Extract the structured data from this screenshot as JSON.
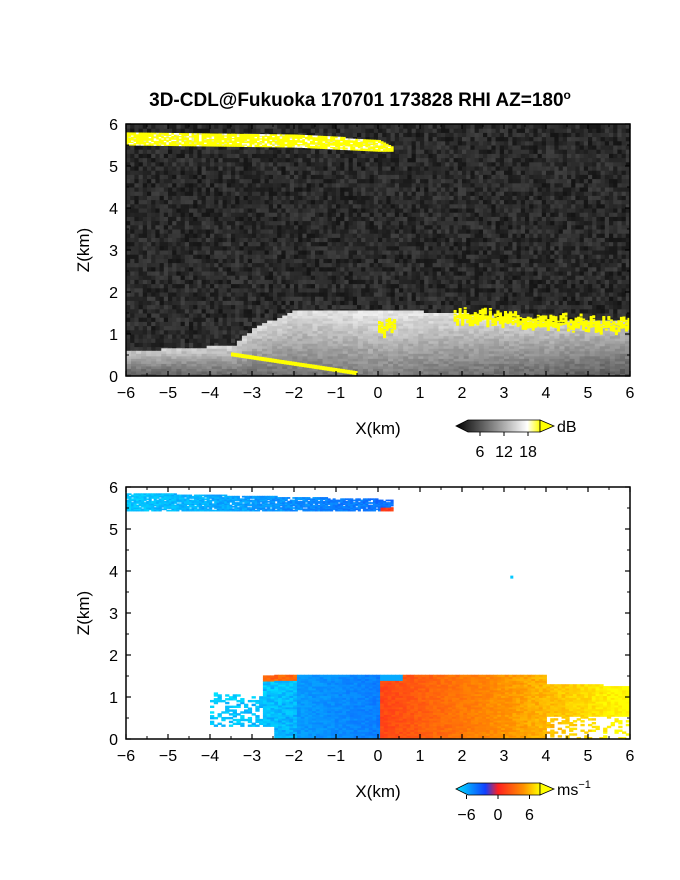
{
  "title": "3D-CDL@Fukuoka 170701 173828 RHI AZ=180",
  "title_superscript": "o",
  "chart_data": [
    {
      "type": "heatmap",
      "quantity": "backscatter intensity",
      "xlabel": "X(km)",
      "ylabel": "Z(km)",
      "xlim": [
        -6,
        6
      ],
      "ylim": [
        0,
        6
      ],
      "xticks": [
        "-6",
        "-5",
        "-4",
        "-3",
        "-2",
        "-1",
        "0",
        "1",
        "2",
        "3",
        "4",
        "5",
        "6"
      ],
      "yticks": [
        "0",
        "1",
        "2",
        "3",
        "4",
        "5",
        "6"
      ],
      "colorbar": {
        "unit": "dB",
        "ticks": [
          "6",
          "12",
          "18"
        ],
        "range": [
          0,
          21
        ],
        "colors": [
          "#000000",
          "#ffffff",
          "#ffff00"
        ]
      },
      "background_color": "#2a2a2a",
      "features": [
        {
          "name": "upper layer",
          "z_top": [
            [
              -6,
              5.8
            ],
            [
              -2,
              5.75
            ],
            [
              0,
              5.6
            ],
            [
              0.3,
              5.45
            ]
          ],
          "z_bottom": [
            [
              -6,
              5.5
            ],
            [
              -2,
              5.45
            ],
            [
              0,
              5.35
            ],
            [
              0.3,
              5.35
            ]
          ],
          "color": "#ffff00"
        },
        {
          "name": "boundary layer echo",
          "z_top": [
            [
              -6,
              0.55
            ],
            [
              -3.5,
              0.7
            ],
            [
              -3,
              1.1
            ],
            [
              -2,
              1.55
            ],
            [
              0,
              1.55
            ],
            [
              2,
              1.45
            ],
            [
              4,
              1.25
            ],
            [
              6,
              1.3
            ]
          ],
          "z_bottom": [
            [
              -6,
              0
            ],
            [
              6,
              0
            ]
          ],
          "color": "#c8c8c8"
        },
        {
          "name": "boundary layer top",
          "x": [
            [
              0,
              0.4
            ],
            [
              1.8,
              6
            ]
          ],
          "z": [
            [
              1.15,
              1.2
            ],
            [
              1.45,
              1.2
            ]
          ],
          "color": "#ffff00"
        },
        {
          "name": "low-level line",
          "x": [
            -3.5,
            -0.5
          ],
          "z": [
            0.5,
            0.05
          ],
          "color": "#ffff00"
        }
      ]
    },
    {
      "type": "heatmap",
      "quantity": "radial velocity",
      "xlabel": "X(km)",
      "ylabel": "Z(km)",
      "xlim": [
        -6,
        6
      ],
      "ylim": [
        0,
        6
      ],
      "xticks": [
        "-6",
        "-5",
        "-4",
        "-3",
        "-2",
        "-1",
        "0",
        "1",
        "2",
        "3",
        "4",
        "5",
        "6"
      ],
      "yticks": [
        "0",
        "1",
        "2",
        "3",
        "4",
        "5",
        "6"
      ],
      "colorbar": {
        "unit": "ms",
        "unit_exponent": "−1",
        "ticks": [
          "−6",
          "0",
          "6"
        ],
        "range": [
          -8,
          8
        ],
        "colors": [
          "#00e5ff",
          "#1040ff",
          "#ff2020",
          "#ffff00"
        ]
      },
      "background_color": "#ffffff",
      "features": [
        {
          "name": "upper layer",
          "x": [
            -6,
            0.3
          ],
          "z": [
            5.45,
            5.85
          ],
          "velocity": [
            -7,
            -4
          ]
        },
        {
          "name": "boundary layer negative",
          "x": [
            -4,
            0
          ],
          "z": [
            0,
            1.5
          ],
          "velocity": [
            -8,
            -3
          ]
        },
        {
          "name": "boundary layer positive",
          "x": [
            0,
            6
          ],
          "z": [
            0,
            1.5
          ],
          "velocity": [
            1,
            7
          ]
        },
        {
          "name": "isolated point",
          "x": [
            3.15
          ],
          "z": [
            3.85
          ],
          "velocity": [
            -7
          ]
        }
      ]
    }
  ]
}
